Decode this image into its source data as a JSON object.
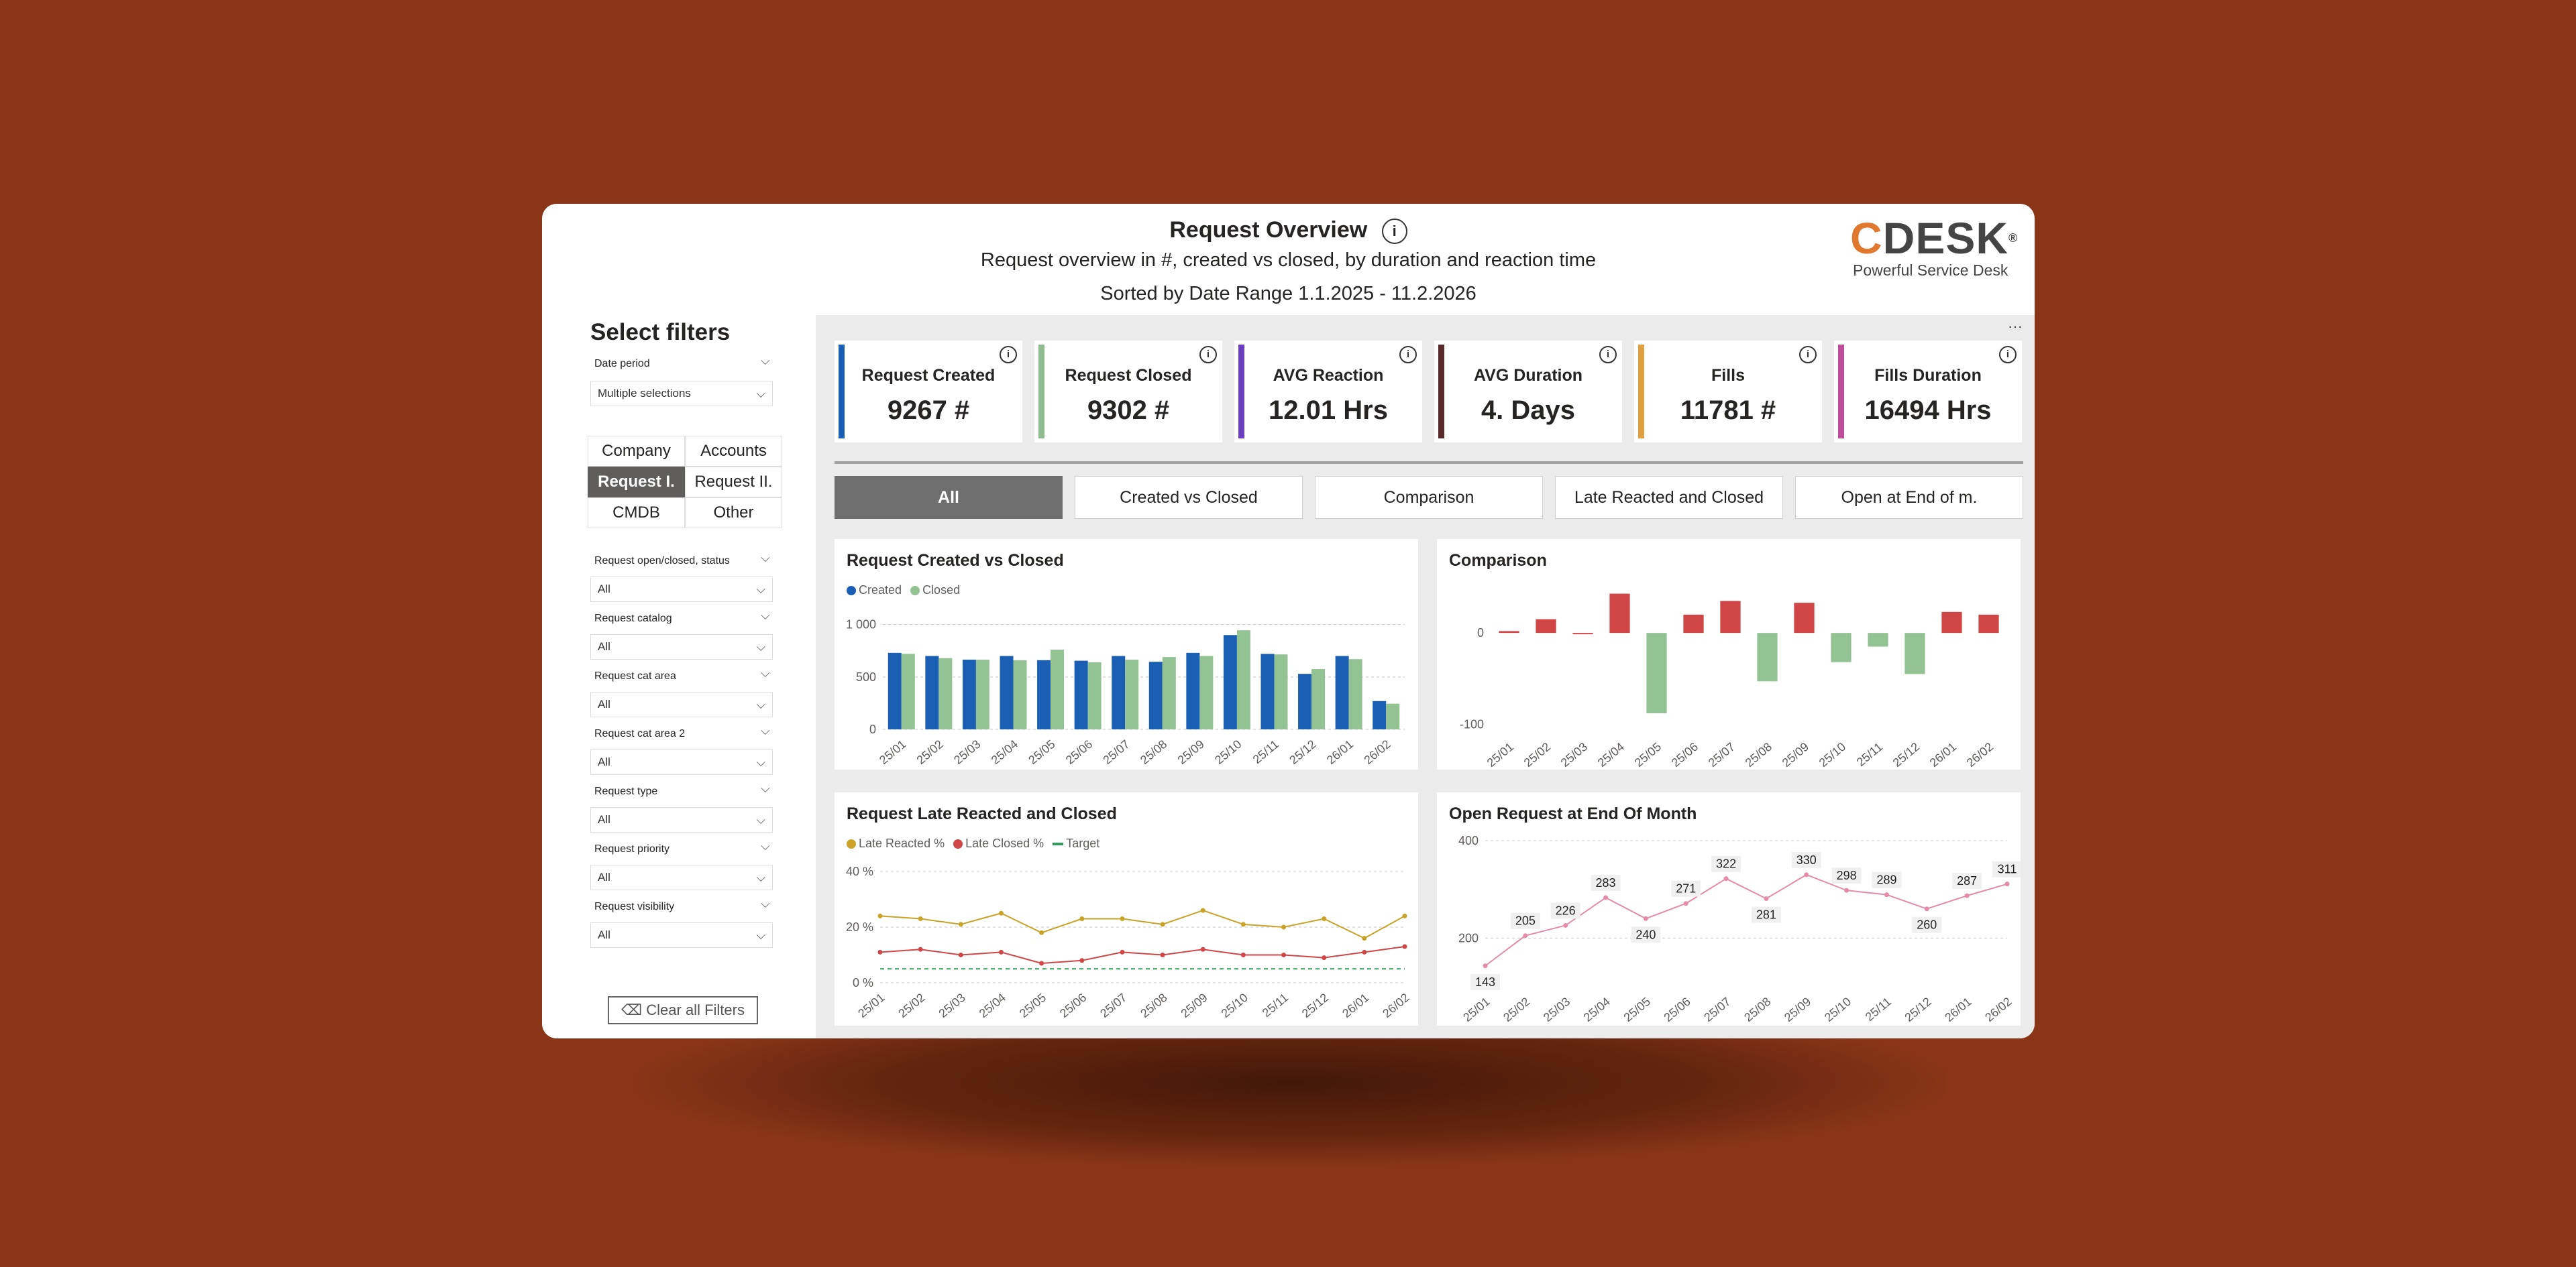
{
  "header": {
    "title": "Request Overview",
    "subtitle": "Request overview in #, created vs closed, by duration and reaction time",
    "sort_text": "Sorted by Date Range 1.1.2025 - 11.2.2026",
    "info_glyph": "i"
  },
  "logo": {
    "c": "C",
    "desk": "DESK",
    "reg": "®",
    "tagline": "Powerful Service Desk"
  },
  "sidebar": {
    "title": "Select filters",
    "date_period": {
      "label": "Date period",
      "value": "Multiple selections"
    },
    "nav": [
      {
        "label": "Company"
      },
      {
        "label": "Accounts"
      },
      {
        "label": "Request I."
      },
      {
        "label": "Request II."
      },
      {
        "label": "CMDB"
      },
      {
        "label": "Other"
      }
    ],
    "filters": [
      {
        "label": "Request open/closed, status",
        "value": "All"
      },
      {
        "label": "Request catalog",
        "value": "All"
      },
      {
        "label": "Request cat area",
        "value": "All"
      },
      {
        "label": "Request cat area 2",
        "value": "All"
      },
      {
        "label": "Request type",
        "value": "All"
      },
      {
        "label": "Request priority",
        "value": "All"
      },
      {
        "label": "Request visibility",
        "value": "All"
      }
    ],
    "clear_label": "Clear all Filters"
  },
  "more_label": "···",
  "kpis": [
    {
      "label": "Request Created",
      "value": "9267 #",
      "color": "#1a5fb4"
    },
    {
      "label": "Request Closed",
      "value": "9302 #",
      "color": "#8fbc8f"
    },
    {
      "label": "AVG Reaction",
      "value": "12.01 Hrs",
      "color": "#6a3fc0"
    },
    {
      "label": "AVG Duration",
      "value": "4. Days",
      "color": "#5a2a2a"
    },
    {
      "label": "Fills",
      "value": "11781 #",
      "color": "#e0a040"
    },
    {
      "label": "Fills Duration",
      "value": "16494 Hrs",
      "color": "#c04d9c"
    }
  ],
  "tabs": [
    {
      "label": "All"
    },
    {
      "label": "Created vs Closed"
    },
    {
      "label": "Comparison"
    },
    {
      "label": "Late Reacted and Closed"
    },
    {
      "label": "Open at End of m."
    }
  ],
  "chart_data": [
    {
      "type": "bar",
      "title": "Request Created vs Closed",
      "categories": [
        "25/01",
        "25/02",
        "25/03",
        "25/04",
        "25/05",
        "25/06",
        "25/07",
        "25/08",
        "25/09",
        "25/10",
        "25/11",
        "25/12",
        "26/01",
        "26/02"
      ],
      "series": [
        {
          "name": "Created",
          "color": "#1a5fb4",
          "values": [
            730,
            700,
            665,
            700,
            660,
            655,
            700,
            645,
            730,
            900,
            720,
            530,
            700,
            270
          ]
        },
        {
          "name": "Closed",
          "color": "#93c392",
          "values": [
            720,
            680,
            665,
            660,
            760,
            640,
            665,
            690,
            700,
            945,
            715,
            575,
            670,
            245
          ]
        }
      ],
      "ylim": [
        0,
        1100
      ],
      "y_ticks": [
        {
          "value": 0,
          "label": "0"
        },
        {
          "value": 500,
          "label": "500"
        },
        {
          "value": 1000,
          "label": "1 000"
        }
      ]
    },
    {
      "type": "bar",
      "title": "Comparison",
      "categories": [
        "25/01",
        "25/02",
        "25/03",
        "25/04",
        "25/05",
        "25/06",
        "25/07",
        "25/08",
        "25/09",
        "25/10",
        "25/11",
        "25/12",
        "26/01",
        "26/02"
      ],
      "values": [
        2,
        15,
        0,
        43,
        -88,
        20,
        35,
        -53,
        33,
        -32,
        -15,
        -45,
        23,
        20
      ],
      "positive_color": "#d04646",
      "negative_color": "#93c392",
      "ylim": [
        -110,
        50
      ],
      "y_ticks": [
        {
          "value": 0,
          "label": "0"
        },
        {
          "value": -100,
          "label": "-100"
        }
      ]
    },
    {
      "type": "line",
      "title": "Request Late Reacted and Closed",
      "categories": [
        "25/01",
        "25/02",
        "25/03",
        "25/04",
        "25/05",
        "25/06",
        "25/07",
        "25/08",
        "25/09",
        "25/10",
        "25/11",
        "25/12",
        "26/01",
        "26/02"
      ],
      "series": [
        {
          "name": "Late Reacted %",
          "color": "#c9a227",
          "values": [
            24,
            23,
            21,
            25,
            18,
            23,
            23,
            21,
            26,
            21,
            20,
            23,
            16,
            24
          ]
        },
        {
          "name": "Late Closed %",
          "color": "#d04646",
          "values": [
            11,
            12,
            10,
            11,
            7,
            8,
            11,
            10,
            12,
            10,
            10,
            9,
            11,
            13
          ]
        },
        {
          "name": "Target",
          "color": "#2e9e5a",
          "values": [
            5,
            5,
            5,
            5,
            5,
            5,
            5,
            5,
            5,
            5,
            5,
            5,
            5,
            5
          ]
        }
      ],
      "ylim": [
        0,
        40
      ],
      "y_ticks": [
        {
          "value": 0,
          "label": "0 %"
        },
        {
          "value": 20,
          "label": "20 %"
        },
        {
          "value": 40,
          "label": "40 %"
        }
      ]
    },
    {
      "type": "line",
      "title": "Open Request at End Of Month",
      "categories": [
        "25/01",
        "25/02",
        "25/03",
        "25/04",
        "25/05",
        "25/06",
        "25/07",
        "25/08",
        "25/09",
        "25/10",
        "25/11",
        "25/12",
        "26/01",
        "26/02"
      ],
      "series": [
        {
          "name": "Open",
          "color": "#e58aa8",
          "values": [
            143,
            205,
            226,
            283,
            240,
            271,
            322,
            281,
            330,
            298,
            289,
            260,
            287,
            311
          ]
        }
      ],
      "labels": [
        "143",
        "205",
        "226",
        "283",
        "240",
        "271",
        "322",
        "281",
        "330",
        "298",
        "289",
        "260",
        "287",
        "311"
      ],
      "label_below": [
        true,
        false,
        false,
        false,
        true,
        false,
        false,
        true,
        false,
        false,
        false,
        true,
        false,
        false
      ],
      "ylim": [
        100,
        400
      ],
      "y_ticks": [
        {
          "value": 200,
          "label": "200"
        },
        {
          "value": 400,
          "label": "400"
        }
      ]
    }
  ]
}
